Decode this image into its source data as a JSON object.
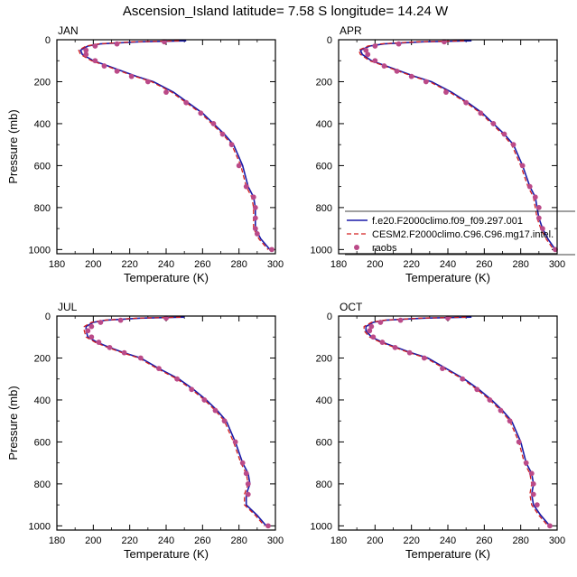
{
  "figure": {
    "title": "Ascension_Island  latitude= 7.58 S longitude= 14.24 W"
  },
  "colors": {
    "model1": "#1a1aa8",
    "model2": "#d42020",
    "raobs": "#bb4a88",
    "axis": "#000000"
  },
  "legend": {
    "entries": [
      {
        "label": "f.e20.F2000climo.f09_f09.297.001",
        "style": "solid-line",
        "color": "#1a1aa8"
      },
      {
        "label": "CESM2.F2000climo.C96.C96.mg17.intel.",
        "style": "dashed-line",
        "color": "#d42020"
      },
      {
        "label": "raobs",
        "style": "marker",
        "color": "#bb4a88"
      }
    ],
    "placement": "lower-right of APR panel"
  },
  "chart_data": [
    {
      "type": "line",
      "panel": "JAN",
      "xlabel": "Temperature (K)",
      "ylabel": "Pressure (mb)",
      "xlim": [
        180,
        300
      ],
      "ylim": [
        1020,
        0
      ],
      "xticks": [
        180,
        200,
        220,
        240,
        260,
        280,
        300
      ],
      "yticks": [
        0,
        200,
        400,
        600,
        800,
        1000
      ],
      "series": [
        {
          "name": "f.e20.F2000climo.f09_f09.297.001",
          "style": "solid",
          "x": [
            251,
            225,
            204,
            197,
            193,
            194,
            200,
            208,
            216,
            224,
            233,
            244,
            252,
            260,
            266,
            272,
            277,
            282,
            285,
            288,
            289,
            289,
            289,
            292,
            297
          ],
          "y": [
            5,
            10,
            20,
            30,
            50,
            70,
            100,
            125,
            150,
            175,
            200,
            250,
            300,
            350,
            400,
            450,
            500,
            600,
            700,
            750,
            800,
            850,
            900,
            950,
            1000
          ]
        },
        {
          "name": "CESM2.F2000climo.C96.C96.mg17.intel.",
          "style": "dashed",
          "x": [
            247,
            222,
            203,
            196,
            192,
            193,
            199,
            207,
            215,
            223,
            232,
            243,
            251,
            259,
            265,
            271,
            276,
            281,
            284,
            287,
            288,
            288,
            288,
            291,
            296
          ],
          "y": [
            5,
            10,
            20,
            30,
            50,
            70,
            100,
            125,
            150,
            175,
            200,
            250,
            300,
            350,
            400,
            450,
            500,
            600,
            700,
            750,
            800,
            850,
            900,
            950,
            1000
          ]
        },
        {
          "name": "raobs",
          "style": "markers",
          "x": [
            239,
            213,
            201,
            196,
            196,
            201,
            206,
            213,
            221,
            230,
            240,
            251,
            259,
            266,
            271,
            276,
            280,
            284,
            288,
            289,
            289,
            289,
            290,
            298
          ],
          "y": [
            10,
            20,
            30,
            50,
            70,
            100,
            125,
            150,
            175,
            200,
            250,
            300,
            350,
            400,
            450,
            500,
            600,
            700,
            750,
            800,
            850,
            900,
            925,
            1000
          ]
        }
      ]
    },
    {
      "type": "line",
      "panel": "APR",
      "xlabel": "Temperature (K)",
      "ylabel": "",
      "xlim": [
        180,
        300
      ],
      "ylim": [
        1020,
        0
      ],
      "xticks": [
        180,
        200,
        220,
        240,
        260,
        280,
        300
      ],
      "yticks": [
        0,
        200,
        400,
        600,
        800,
        1000
      ],
      "series": [
        {
          "name": "f.e20.F2000climo.f09_f09.297.001",
          "style": "solid",
          "x": [
            253,
            226,
            205,
            197,
            192,
            193,
            198,
            206,
            214,
            222,
            231,
            242,
            251,
            259,
            265,
            271,
            276,
            281,
            285,
            288,
            289,
            290,
            292,
            295,
            299
          ],
          "y": [
            5,
            10,
            20,
            30,
            50,
            70,
            100,
            125,
            150,
            175,
            200,
            250,
            300,
            350,
            400,
            450,
            500,
            600,
            700,
            750,
            800,
            850,
            900,
            950,
            1000
          ]
        },
        {
          "name": "CESM2.F2000climo.C96.C96.mg17.intel.",
          "style": "dashed",
          "x": [
            249,
            223,
            203,
            196,
            191,
            192,
            197,
            205,
            213,
            221,
            230,
            241,
            250,
            258,
            264,
            270,
            275,
            280,
            284,
            287,
            288,
            289,
            291,
            294,
            298
          ],
          "y": [
            5,
            10,
            20,
            30,
            50,
            70,
            100,
            125,
            150,
            175,
            200,
            250,
            300,
            350,
            400,
            450,
            500,
            600,
            700,
            750,
            800,
            850,
            900,
            950,
            1000
          ]
        },
        {
          "name": "raobs",
          "style": "markers",
          "x": [
            238,
            213,
            200,
            195,
            196,
            200,
            205,
            212,
            220,
            228,
            239,
            250,
            258,
            265,
            271,
            276,
            281,
            285,
            288,
            290,
            290,
            292,
            299
          ],
          "y": [
            10,
            20,
            30,
            50,
            70,
            100,
            125,
            150,
            175,
            200,
            250,
            300,
            350,
            400,
            450,
            500,
            600,
            700,
            750,
            800,
            850,
            900,
            1000
          ]
        }
      ]
    },
    {
      "type": "line",
      "panel": "JUL",
      "xlabel": "Temperature (K)",
      "ylabel": "Pressure (mb)",
      "xlim": [
        180,
        300
      ],
      "ylim": [
        1020,
        0
      ],
      "xticks": [
        180,
        200,
        220,
        240,
        260,
        280,
        300
      ],
      "yticks": [
        0,
        200,
        400,
        600,
        800,
        1000
      ],
      "series": [
        {
          "name": "f.e20.F2000climo.f09_f09.297.001",
          "style": "solid",
          "x": [
            250,
            226,
            207,
            200,
            196,
            196,
            197,
            202,
            209,
            217,
            226,
            236,
            247,
            255,
            262,
            268,
            273,
            278,
            282,
            285,
            286,
            284,
            284,
            290,
            295
          ],
          "y": [
            5,
            10,
            20,
            30,
            50,
            70,
            100,
            125,
            150,
            175,
            200,
            250,
            300,
            350,
            400,
            450,
            500,
            600,
            700,
            750,
            800,
            850,
            900,
            950,
            1000
          ]
        },
        {
          "name": "CESM2.F2000climo.C96.C96.mg17.intel.",
          "style": "dashed",
          "x": [
            248,
            224,
            206,
            199,
            195,
            195,
            196,
            201,
            208,
            216,
            225,
            235,
            246,
            254,
            261,
            267,
            272,
            277,
            281,
            284,
            285,
            283,
            283,
            289,
            294
          ],
          "y": [
            5,
            10,
            20,
            30,
            50,
            70,
            100,
            125,
            150,
            175,
            200,
            250,
            300,
            350,
            400,
            450,
            500,
            600,
            700,
            750,
            800,
            850,
            900,
            950,
            1000
          ]
        },
        {
          "name": "raobs",
          "style": "markers",
          "x": [
            240,
            215,
            204,
            199,
            197,
            199,
            203,
            209,
            217,
            226,
            236,
            246,
            254,
            261,
            267,
            272,
            278,
            282,
            284,
            285,
            285,
            296
          ],
          "y": [
            10,
            20,
            30,
            50,
            70,
            100,
            125,
            150,
            175,
            200,
            250,
            300,
            350,
            400,
            450,
            500,
            600,
            700,
            750,
            800,
            850,
            1000
          ]
        }
      ]
    },
    {
      "type": "line",
      "panel": "OCT",
      "xlabel": "Temperature (K)",
      "ylabel": "",
      "xlim": [
        180,
        300
      ],
      "ylim": [
        1020,
        0
      ],
      "xticks": [
        180,
        200,
        220,
        240,
        260,
        280,
        300
      ],
      "yticks": [
        0,
        200,
        400,
        600,
        800,
        1000
      ],
      "series": [
        {
          "name": "f.e20.F2000climo.f09_f09.297.001",
          "style": "solid",
          "x": [
            253,
            227,
            206,
            199,
            195,
            195,
            198,
            204,
            212,
            220,
            229,
            239,
            249,
            257,
            264,
            270,
            275,
            280,
            283,
            286,
            287,
            286,
            287,
            291,
            296
          ],
          "y": [
            5,
            10,
            20,
            30,
            50,
            70,
            100,
            125,
            150,
            175,
            200,
            250,
            300,
            350,
            400,
            450,
            500,
            600,
            700,
            750,
            800,
            850,
            900,
            950,
            1000
          ]
        },
        {
          "name": "CESM2.F2000climo.C96.C96.mg17.intel.",
          "style": "dashed",
          "x": [
            250,
            225,
            205,
            198,
            194,
            194,
            197,
            203,
            211,
            219,
            228,
            238,
            248,
            256,
            263,
            269,
            274,
            279,
            282,
            285,
            286,
            285,
            286,
            290,
            295
          ],
          "y": [
            5,
            10,
            20,
            30,
            50,
            70,
            100,
            125,
            150,
            175,
            200,
            250,
            300,
            350,
            400,
            450,
            500,
            600,
            700,
            750,
            800,
            850,
            900,
            950,
            1000
          ]
        },
        {
          "name": "raobs",
          "style": "markers",
          "x": [
            240,
            214,
            203,
            198,
            197,
            199,
            204,
            211,
            219,
            227,
            237,
            248,
            256,
            263,
            269,
            274,
            279,
            283,
            286,
            287,
            287,
            289,
            296
          ],
          "y": [
            10,
            20,
            30,
            50,
            70,
            100,
            125,
            150,
            175,
            200,
            250,
            300,
            350,
            400,
            450,
            500,
            600,
            700,
            750,
            800,
            850,
            900,
            1000
          ]
        }
      ]
    }
  ]
}
